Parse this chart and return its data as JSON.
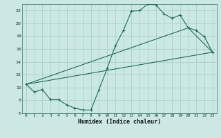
{
  "title": "",
  "xlabel": "Humidex (Indice chaleur)",
  "ylabel": "",
  "bg_color": "#cce8e4",
  "grid_color": "#aacfcc",
  "line_color": "#1a6b5a",
  "spine_color": "#4a8a80",
  "xlim": [
    -0.5,
    23.5
  ],
  "ylim": [
    6,
    23
  ],
  "xticks": [
    0,
    1,
    2,
    3,
    4,
    5,
    6,
    7,
    8,
    9,
    10,
    11,
    12,
    13,
    14,
    15,
    16,
    17,
    18,
    19,
    20,
    21,
    22,
    23
  ],
  "yticks": [
    6,
    8,
    10,
    12,
    14,
    16,
    18,
    20,
    22
  ],
  "line1_x": [
    0,
    1,
    2,
    3,
    4,
    5,
    6,
    7,
    8,
    9,
    10,
    11,
    12,
    13,
    14,
    15,
    16,
    17,
    18,
    19,
    20,
    21,
    22,
    23
  ],
  "line1_y": [
    10.5,
    9.3,
    9.7,
    8.1,
    8.1,
    7.3,
    6.8,
    6.5,
    6.5,
    9.7,
    13.0,
    16.5,
    18.9,
    21.9,
    22.0,
    23.0,
    22.9,
    21.5,
    20.8,
    21.3,
    19.3,
    18.9,
    17.9,
    15.5
  ],
  "line2_x": [
    0,
    23
  ],
  "line2_y": [
    10.5,
    15.5
  ],
  "line3_x": [
    0,
    20,
    23
  ],
  "line3_y": [
    10.5,
    19.3,
    15.5
  ],
  "figsize": [
    3.2,
    2.0
  ],
  "dpi": 100
}
